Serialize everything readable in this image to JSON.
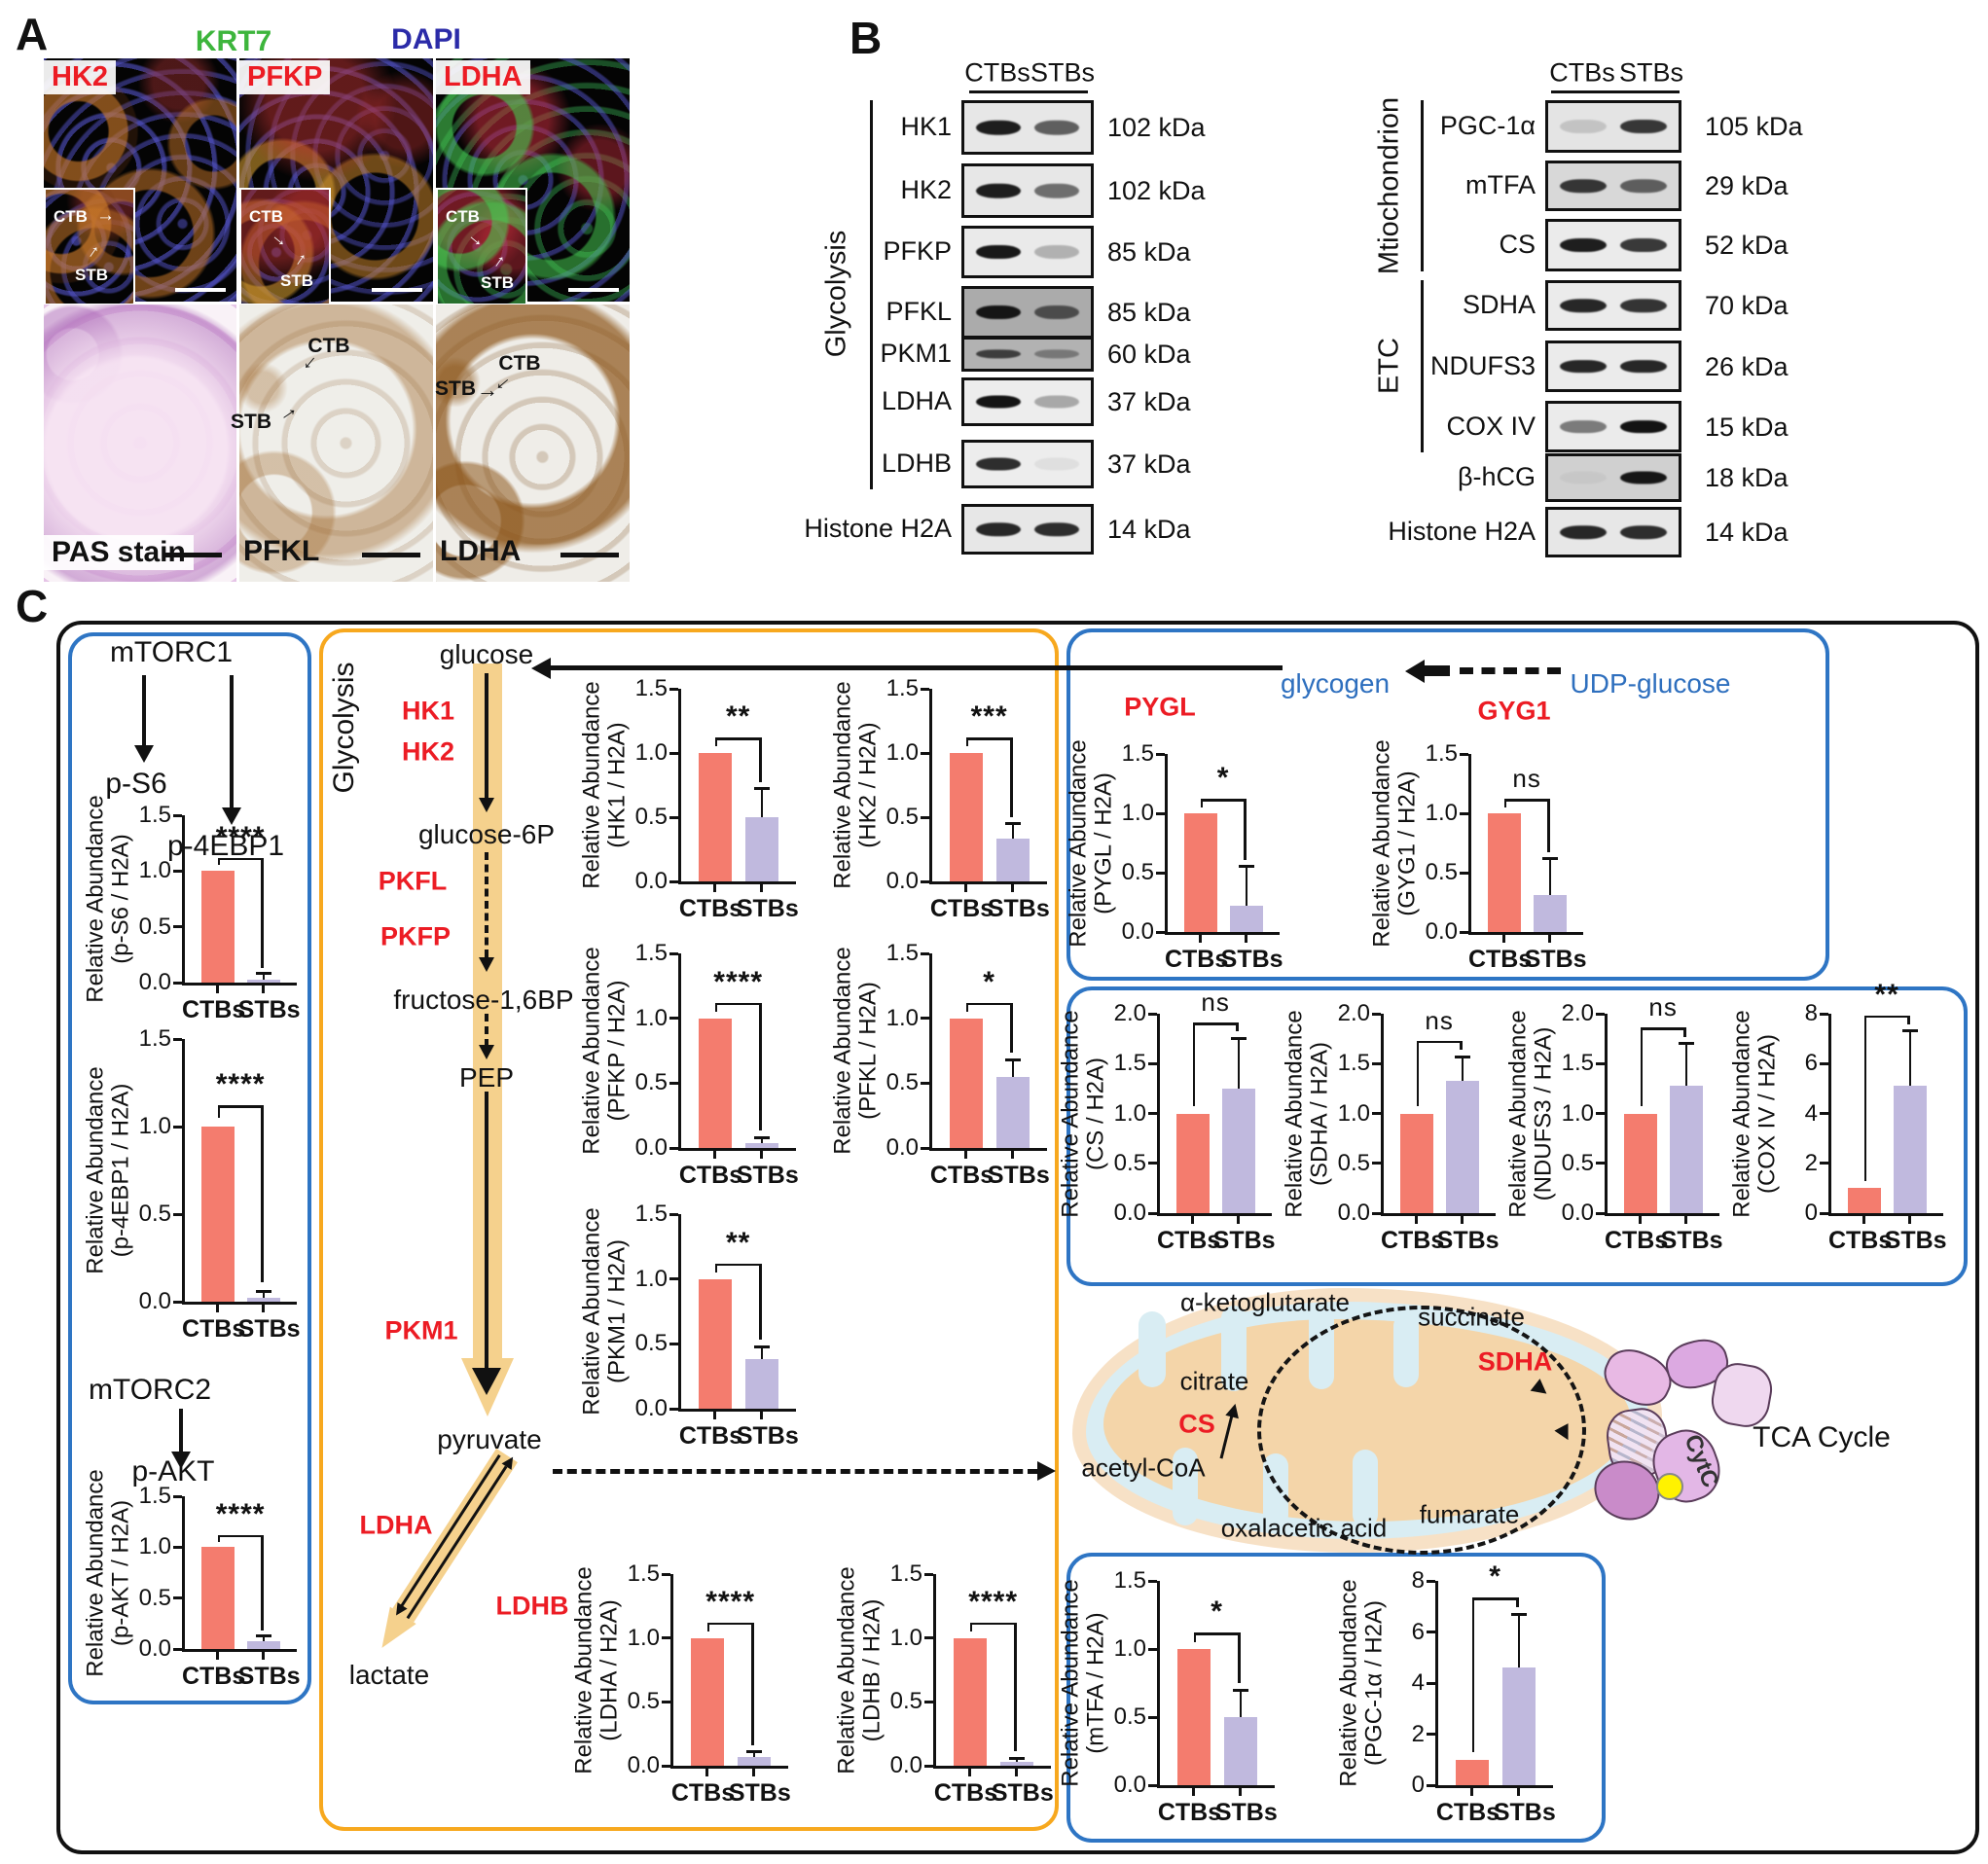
{
  "colors": {
    "ctb_bar": "#F47C6E",
    "stb_bar": "#C0B9DE",
    "red_label": "#EC1C24",
    "blue_label": "#2E6FBE",
    "box_blue": "#2E75C4",
    "box_orange": "#F7A81E",
    "band_orange": "#F5D18D",
    "krt7_green": "#3DB53C",
    "dapi_blue": "#2B2BA8"
  },
  "panelA": {
    "label": "A",
    "headers": {
      "krt7": "KRT7",
      "dapi": "DAPI"
    },
    "if_markers": [
      "HK2",
      "PFKP",
      "LDHA"
    ],
    "inset": {
      "ctb": "CTB",
      "stb": "STB"
    },
    "hist_labels": [
      "PAS stain",
      "PFKL",
      "LDHA"
    ],
    "hist_annotations": {
      "pfkl_ctb": "CTB",
      "pfkl_stb": "STB",
      "ldha_stb": "STB",
      "ldha_ctb": "CTB"
    }
  },
  "panelB": {
    "label": "B",
    "col_headers": [
      "CTBs",
      "STBs"
    ],
    "left": {
      "group_label": "Glycolysis",
      "rows": [
        {
          "protein": "HK1",
          "kda": "102 kDa",
          "lanes": [
            0.92,
            0.62
          ],
          "bg": 0.1
        },
        {
          "protein": "HK2",
          "kda": "102 kDa",
          "lanes": [
            0.92,
            0.55
          ],
          "bg": 0.1
        },
        {
          "protein": "PFKP",
          "kda": "85 kDa",
          "lanes": [
            0.95,
            0.25
          ],
          "bg": 0.08
        },
        {
          "protein": "PFKL",
          "kda": "85 kDa",
          "lanes": [
            0.95,
            0.6
          ],
          "bg": 0.5
        },
        {
          "protein": "PKM1",
          "kda": "60 kDa",
          "lanes": [
            0.7,
            0.35
          ],
          "bg": 0.45
        },
        {
          "protein": "LDHA",
          "kda": "37 kDa",
          "lanes": [
            0.97,
            0.3
          ],
          "bg": 0.06
        },
        {
          "protein": "LDHB",
          "kda": "37 kDa",
          "lanes": [
            0.85,
            0.06
          ],
          "bg": 0.06
        },
        {
          "protein": "Histone H2A",
          "kda": "14 kDa",
          "lanes": [
            0.88,
            0.85
          ],
          "bg": 0.1
        }
      ]
    },
    "right": {
      "group_labels": {
        "mito": "Mtiochondrion",
        "etc": "ETC"
      },
      "rows": [
        {
          "protein": "PGC-1α",
          "kda": "105 kDa",
          "lanes": [
            0.15,
            0.8
          ],
          "bg": 0.12
        },
        {
          "protein": "mTFA",
          "kda": "29 kDa",
          "lanes": [
            0.8,
            0.6
          ],
          "bg": 0.2
        },
        {
          "protein": "CS",
          "kda": "52 kDa",
          "lanes": [
            0.92,
            0.8
          ],
          "bg": 0.07
        },
        {
          "protein": "SDHA",
          "kda": "70 kDa",
          "lanes": [
            0.88,
            0.82
          ],
          "bg": 0.07
        },
        {
          "protein": "NDUFS3",
          "kda": "26 kDa",
          "lanes": [
            0.88,
            0.88
          ],
          "bg": 0.07
        },
        {
          "protein": "COX IV",
          "kda": "15 kDa",
          "lanes": [
            0.5,
            0.97
          ],
          "bg": 0.07
        },
        {
          "protein": "β-hCG",
          "kda": "18 kDa",
          "lanes": [
            0.04,
            0.95
          ],
          "bg": 0.25
        },
        {
          "protein": "Histone H2A",
          "kda": "14 kDa",
          "lanes": [
            0.88,
            0.85
          ],
          "bg": 0.1
        }
      ]
    }
  },
  "panelC": {
    "label": "C",
    "mtor": {
      "mtorc1": "mTORC1",
      "ps6": "p-S6",
      "p4ebp1": "p-4EBP1",
      "mtorc2": "mTORC2",
      "pakt": "p-AKT"
    },
    "glycolysis": {
      "title": "Glycolysis",
      "metabolites": [
        "glucose",
        "glucose-6P",
        "fructose-1,6BP",
        "PEP",
        "pyruvate",
        "lactate"
      ],
      "enzymes": [
        "HK1",
        "HK2",
        "PKFL",
        "PKFP",
        "PKM1",
        "LDHA",
        "LDHB"
      ]
    },
    "glycogen_box": {
      "pygl": "PYGL",
      "glycogen": "glycogen",
      "gyg1": "GYG1",
      "udp_glucose": "UDP-glucose"
    },
    "tca": {
      "title": "TCA Cycle",
      "metabolites": [
        "α-ketoglutarate",
        "succinate",
        "citrate",
        "acetyl-CoA",
        "oxalacetic acid",
        "fumarate"
      ],
      "enzymes": {
        "cs": "CS",
        "sdha": "SDHA"
      },
      "cytc": "CytC"
    }
  },
  "chart_data": [
    {
      "id": "p-S6",
      "type": "bar",
      "ylabel_line1": "Relative Abundance",
      "ylabel_line2": "(p-S6 / H2A)",
      "categories": [
        "CTBs",
        "STBs"
      ],
      "values": [
        1.0,
        0.03
      ],
      "errors": [
        0,
        0.05
      ],
      "significance": "****",
      "ylim": [
        0,
        1.5
      ],
      "yticks": [
        0,
        0.5,
        1.0,
        1.5
      ]
    },
    {
      "id": "p-4EBP1",
      "type": "bar",
      "ylabel_line1": "Relative Abundance",
      "ylabel_line2": "(p-4EBP1 / H2A)",
      "categories": [
        "CTBs",
        "STBs"
      ],
      "values": [
        1.0,
        0.02
      ],
      "errors": [
        0,
        0.04
      ],
      "significance": "****",
      "ylim": [
        0,
        1.5
      ],
      "yticks": [
        0,
        0.5,
        1.0,
        1.5
      ]
    },
    {
      "id": "p-AKT",
      "type": "bar",
      "ylabel_line1": "Relative Abundance",
      "ylabel_line2": "(p-AKT / H2A)",
      "categories": [
        "CTBs",
        "STBs"
      ],
      "values": [
        1.0,
        0.08
      ],
      "errors": [
        0,
        0.05
      ],
      "significance": "****",
      "ylim": [
        0,
        1.5
      ],
      "yticks": [
        0,
        0.5,
        1.0,
        1.5
      ]
    },
    {
      "id": "HK1",
      "type": "bar",
      "ylabel_line1": "Relative Abundance",
      "ylabel_line2": "(HK1 / H2A)",
      "categories": [
        "CTBs",
        "STBs"
      ],
      "values": [
        1.0,
        0.5
      ],
      "errors": [
        0,
        0.22
      ],
      "significance": "**",
      "ylim": [
        0,
        1.5
      ],
      "yticks": [
        0,
        0.5,
        1.0,
        1.5
      ]
    },
    {
      "id": "HK2",
      "type": "bar",
      "ylabel_line1": "Relative Abundance",
      "ylabel_line2": "(HK2 / H2A)",
      "categories": [
        "CTBs",
        "STBs"
      ],
      "values": [
        1.0,
        0.33
      ],
      "errors": [
        0,
        0.12
      ],
      "significance": "***",
      "ylim": [
        0,
        1.5
      ],
      "yticks": [
        0,
        0.5,
        1.0,
        1.5
      ]
    },
    {
      "id": "PFKP",
      "type": "bar",
      "ylabel_line1": "Relative Abundance",
      "ylabel_line2": "(PFKP / H2A)",
      "categories": [
        "CTBs",
        "STBs"
      ],
      "values": [
        1.0,
        0.04
      ],
      "errors": [
        0,
        0.04
      ],
      "significance": "****",
      "ylim": [
        0,
        1.5
      ],
      "yticks": [
        0,
        0.5,
        1.0,
        1.5
      ]
    },
    {
      "id": "PFKL",
      "type": "bar",
      "ylabel_line1": "Relative Abundance",
      "ylabel_line2": "(PFKL / H2A)",
      "categories": [
        "CTBs",
        "STBs"
      ],
      "values": [
        1.0,
        0.55
      ],
      "errors": [
        0,
        0.13
      ],
      "significance": "*",
      "ylim": [
        0,
        1.5
      ],
      "yticks": [
        0,
        0.5,
        1.0,
        1.5
      ]
    },
    {
      "id": "PKM1",
      "type": "bar",
      "ylabel_line1": "Relative Abundance",
      "ylabel_line2": "(PKM1 / H2A)",
      "categories": [
        "CTBs",
        "STBs"
      ],
      "values": [
        1.0,
        0.38
      ],
      "errors": [
        0,
        0.1
      ],
      "significance": "**",
      "ylim": [
        0,
        1.5
      ],
      "yticks": [
        0,
        0.5,
        1.0,
        1.5
      ]
    },
    {
      "id": "LDHA",
      "type": "bar",
      "ylabel_line1": "Relative Abundance",
      "ylabel_line2": "(LDHA / H2A)",
      "categories": [
        "CTBs",
        "STBs"
      ],
      "values": [
        1.0,
        0.07
      ],
      "errors": [
        0,
        0.04
      ],
      "significance": "****",
      "ylim": [
        0,
        1.5
      ],
      "yticks": [
        0,
        0.5,
        1.0,
        1.5
      ]
    },
    {
      "id": "LDHB",
      "type": "bar",
      "ylabel_line1": "Relative Abundance",
      "ylabel_line2": "(LDHB / H2A)",
      "categories": [
        "CTBs",
        "STBs"
      ],
      "values": [
        1.0,
        0.03
      ],
      "errors": [
        0,
        0.03
      ],
      "significance": "****",
      "ylim": [
        0,
        1.5
      ],
      "yticks": [
        0,
        0.5,
        1.0,
        1.5
      ]
    },
    {
      "id": "PYGL",
      "type": "bar",
      "ylabel_line1": "Relative Abundance",
      "ylabel_line2": "(PYGL / H2A)",
      "categories": [
        "CTBs",
        "STBs"
      ],
      "values": [
        1.0,
        0.22
      ],
      "errors": [
        0,
        0.33
      ],
      "significance": "*",
      "ylim": [
        0,
        1.5
      ],
      "yticks": [
        0,
        0.5,
        1.0,
        1.5
      ]
    },
    {
      "id": "GYG1",
      "type": "bar",
      "ylabel_line1": "Relative Abundance",
      "ylabel_line2": "(GYG1 / H2A)",
      "categories": [
        "CTBs",
        "STBs"
      ],
      "values": [
        1.0,
        0.31
      ],
      "errors": [
        0,
        0.31
      ],
      "significance": "ns",
      "ylim": [
        0,
        1.5
      ],
      "yticks": [
        0,
        0.5,
        1.0,
        1.5
      ]
    },
    {
      "id": "CS",
      "type": "bar",
      "ylabel_line1": "Relative Abundance",
      "ylabel_line2": "(CS / H2A)",
      "categories": [
        "CTBs",
        "STBs"
      ],
      "values": [
        1.0,
        1.25
      ],
      "errors": [
        0,
        0.5
      ],
      "significance": "ns",
      "ylim": [
        0,
        2.0
      ],
      "yticks": [
        0,
        0.5,
        1.0,
        1.5,
        2.0
      ]
    },
    {
      "id": "SDHA",
      "type": "bar",
      "ylabel_line1": "Relative Abundance",
      "ylabel_line2": "(SDHA / H2A)",
      "categories": [
        "CTBs",
        "STBs"
      ],
      "values": [
        1.0,
        1.33
      ],
      "errors": [
        0,
        0.24
      ],
      "significance": "ns",
      "ylim": [
        0,
        2.0
      ],
      "yticks": [
        0,
        0.5,
        1.0,
        1.5,
        2.0
      ]
    },
    {
      "id": "NDUFS3",
      "type": "bar",
      "ylabel_line1": "Relative Abundance",
      "ylabel_line2": "(NDUFS3 / H2A)",
      "categories": [
        "CTBs",
        "STBs"
      ],
      "values": [
        1.0,
        1.28
      ],
      "errors": [
        0,
        0.42
      ],
      "significance": "ns",
      "ylim": [
        0,
        2.0
      ],
      "yticks": [
        0,
        0.5,
        1.0,
        1.5,
        2.0
      ]
    },
    {
      "id": "COX IV",
      "type": "bar",
      "ylabel_line1": "Relative Abundance",
      "ylabel_line2": "(COX IV / H2A)",
      "categories": [
        "CTBs",
        "STBs"
      ],
      "values": [
        1.0,
        5.1
      ],
      "errors": [
        0,
        2.2
      ],
      "significance": "**",
      "ylim": [
        0,
        8
      ],
      "yticks": [
        0,
        2,
        4,
        6,
        8
      ]
    },
    {
      "id": "mTFA",
      "type": "bar",
      "ylabel_line1": "Relative Abundance",
      "ylabel_line2": "(mTFA / H2A)",
      "categories": [
        "CTBs",
        "STBs"
      ],
      "values": [
        1.0,
        0.5
      ],
      "errors": [
        0,
        0.2
      ],
      "significance": "*",
      "ylim": [
        0,
        1.5
      ],
      "yticks": [
        0,
        0.5,
        1.0,
        1.5
      ]
    },
    {
      "id": "PGC-1α",
      "type": "bar",
      "ylabel_line1": "Relative Abundance",
      "ylabel_line2": "(PGC-1α / H2A)",
      "categories": [
        "CTBs",
        "STBs"
      ],
      "values": [
        1.0,
        4.6
      ],
      "errors": [
        0,
        2.1
      ],
      "significance": "*",
      "ylim": [
        0,
        8
      ],
      "yticks": [
        0,
        2,
        4,
        6,
        8
      ]
    }
  ]
}
